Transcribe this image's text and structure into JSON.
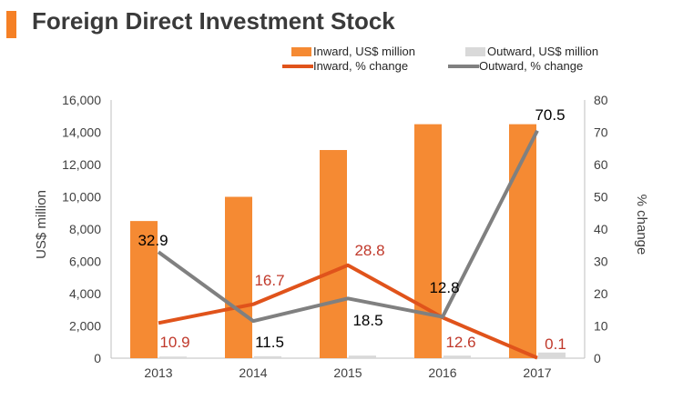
{
  "header": {
    "title": "Foreign Direct Investment Stock"
  },
  "colors": {
    "accent": "#f58025",
    "inward_bar": "#f58a33",
    "outward_bar": "#d9d9d9",
    "inward_line": "#e0531b",
    "outward_line": "#808080",
    "inward_label": "#c0392b",
    "outward_label": "#000000"
  },
  "chart_data": {
    "type": "bar",
    "title": "Foreign Direct Investment Stock",
    "categories": [
      "2013",
      "2014",
      "2015",
      "2016",
      "2017"
    ],
    "ylabel": "US$ million",
    "y2label": "% change",
    "ylim": [
      0,
      16000
    ],
    "y2lim": [
      0,
      80
    ],
    "yticks": [
      "0",
      "2,000",
      "4,000",
      "6,000",
      "8,000",
      "10,000",
      "12,000",
      "14,000",
      "16,000"
    ],
    "y2ticks": [
      "0",
      "10",
      "20",
      "30",
      "40",
      "50",
      "60",
      "70",
      "80"
    ],
    "legend_position": "top-right",
    "series": [
      {
        "name": "Inward, US$ million",
        "kind": "bar",
        "axis": "left",
        "values": [
          8500,
          10000,
          12900,
          14500,
          14500
        ]
      },
      {
        "name": "Outward, US$ million",
        "kind": "bar",
        "axis": "left",
        "values": [
          100,
          120,
          160,
          160,
          350
        ]
      },
      {
        "name": "Inward, % change",
        "kind": "line",
        "axis": "right",
        "values": [
          10.9,
          16.7,
          28.8,
          12.6,
          0.1
        ],
        "labels": [
          "10.9",
          "16.7",
          "28.8",
          "12.6",
          "0.1"
        ]
      },
      {
        "name": "Outward, % change",
        "kind": "line",
        "axis": "right",
        "values": [
          32.9,
          11.5,
          18.5,
          12.8,
          70.5
        ],
        "labels": [
          "32.9",
          "11.5",
          "18.5",
          "12.8",
          "70.5"
        ]
      }
    ]
  }
}
